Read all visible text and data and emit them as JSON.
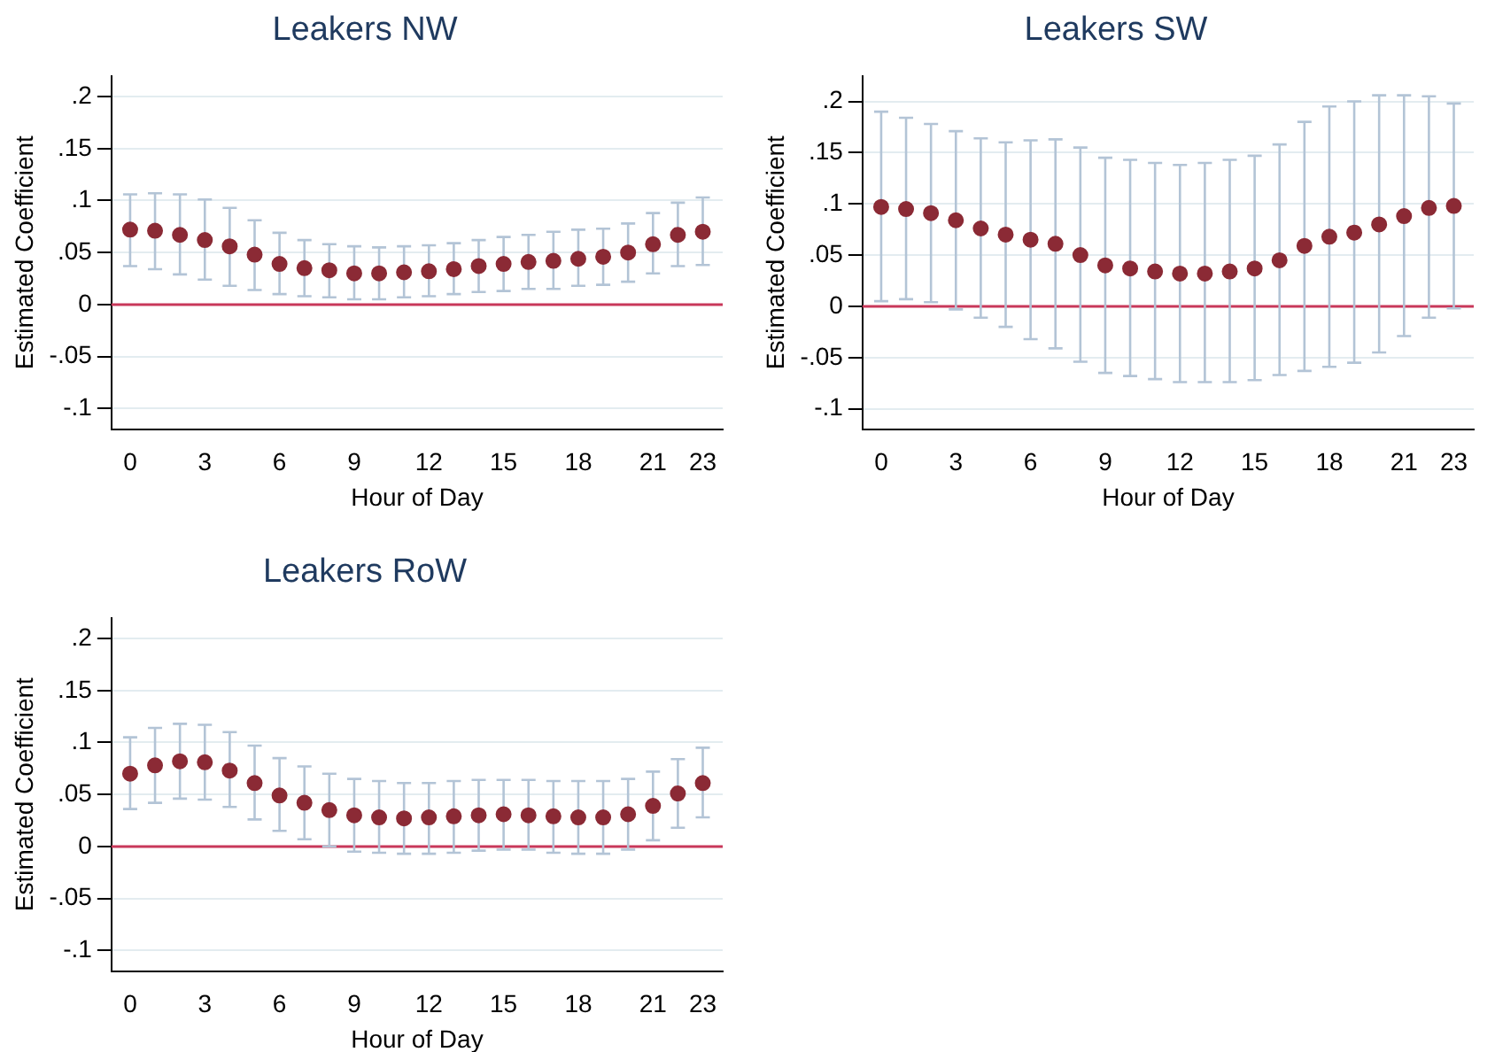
{
  "chart_data": [
    {
      "type": "scatter",
      "title": "Leakers NW",
      "xlabel": "Hour of Day",
      "ylabel": "Estimated Coefficient",
      "color": "#8b2a35",
      "marker": "circle",
      "grid": "y",
      "x": [
        0,
        1,
        2,
        3,
        4,
        5,
        6,
        7,
        8,
        9,
        10,
        11,
        12,
        13,
        14,
        15,
        16,
        17,
        18,
        19,
        20,
        21,
        22,
        23
      ],
      "values": [
        0.072,
        0.071,
        0.067,
        0.062,
        0.056,
        0.048,
        0.039,
        0.035,
        0.033,
        0.03,
        0.03,
        0.031,
        0.032,
        0.034,
        0.037,
        0.039,
        0.041,
        0.042,
        0.044,
        0.046,
        0.05,
        0.058,
        0.067,
        0.07
      ],
      "errors": [
        [
          0.037,
          0.106
        ],
        [
          0.034,
          0.107
        ],
        [
          0.029,
          0.106
        ],
        [
          0.024,
          0.101
        ],
        [
          0.018,
          0.093
        ],
        [
          0.014,
          0.081
        ],
        [
          0.01,
          0.069
        ],
        [
          0.008,
          0.062
        ],
        [
          0.007,
          0.058
        ],
        [
          0.005,
          0.056
        ],
        [
          0.005,
          0.055
        ],
        [
          0.007,
          0.056
        ],
        [
          0.008,
          0.057
        ],
        [
          0.01,
          0.059
        ],
        [
          0.012,
          0.062
        ],
        [
          0.013,
          0.065
        ],
        [
          0.015,
          0.067
        ],
        [
          0.015,
          0.07
        ],
        [
          0.018,
          0.072
        ],
        [
          0.019,
          0.073
        ],
        [
          0.022,
          0.078
        ],
        [
          0.03,
          0.088
        ],
        [
          0.037,
          0.098
        ],
        [
          0.038,
          0.103
        ]
      ],
      "xlim": [
        -0.75,
        23.8
      ],
      "ylim": [
        -0.12,
        0.22
      ],
      "xticks": [
        0,
        3,
        6,
        9,
        12,
        15,
        18,
        21,
        23
      ],
      "yticks": [
        {
          "value": -0.1,
          "label": "-.1"
        },
        {
          "value": -0.05,
          "label": "-.05"
        },
        {
          "value": 0,
          "label": "0"
        },
        {
          "value": 0.05,
          "label": ".05"
        },
        {
          "value": 0.1,
          "label": ".1"
        },
        {
          "value": 0.15,
          "label": ".15"
        },
        {
          "value": 0.2,
          "label": ".2"
        }
      ],
      "ref_lines": [
        {
          "axis": "y",
          "value": 0,
          "color": "#c8385a"
        }
      ]
    },
    {
      "type": "scatter",
      "title": "Leakers SW",
      "xlabel": "Hour of Day",
      "ylabel": "Estimated Coefficient",
      "color": "#8b2a35",
      "marker": "circle",
      "grid": "y",
      "x": [
        0,
        1,
        2,
        3,
        4,
        5,
        6,
        7,
        8,
        9,
        10,
        11,
        12,
        13,
        14,
        15,
        16,
        17,
        18,
        19,
        20,
        21,
        22,
        23
      ],
      "values": [
        0.097,
        0.095,
        0.091,
        0.084,
        0.076,
        0.07,
        0.065,
        0.061,
        0.05,
        0.04,
        0.037,
        0.034,
        0.032,
        0.032,
        0.034,
        0.037,
        0.045,
        0.059,
        0.068,
        0.072,
        0.08,
        0.088,
        0.096,
        0.098
      ],
      "errors": [
        [
          0.005,
          0.19
        ],
        [
          0.007,
          0.184
        ],
        [
          0.004,
          0.178
        ],
        [
          -0.003,
          0.171
        ],
        [
          -0.011,
          0.164
        ],
        [
          -0.02,
          0.16
        ],
        [
          -0.032,
          0.162
        ],
        [
          -0.041,
          0.163
        ],
        [
          -0.054,
          0.155
        ],
        [
          -0.065,
          0.145
        ],
        [
          -0.068,
          0.143
        ],
        [
          -0.071,
          0.14
        ],
        [
          -0.074,
          0.138
        ],
        [
          -0.074,
          0.14
        ],
        [
          -0.074,
          0.143
        ],
        [
          -0.072,
          0.147
        ],
        [
          -0.067,
          0.158
        ],
        [
          -0.063,
          0.18
        ],
        [
          -0.059,
          0.195
        ],
        [
          -0.055,
          0.2
        ],
        [
          -0.045,
          0.206
        ],
        [
          -0.029,
          0.206
        ],
        [
          -0.011,
          0.205
        ],
        [
          -0.002,
          0.198
        ]
      ],
      "xlim": [
        -0.75,
        23.8
      ],
      "ylim": [
        -0.12,
        0.225
      ],
      "xticks": [
        0,
        3,
        6,
        9,
        12,
        15,
        18,
        21,
        23
      ],
      "yticks": [
        {
          "value": -0.1,
          "label": "-.1"
        },
        {
          "value": -0.05,
          "label": "-.05"
        },
        {
          "value": 0,
          "label": "0"
        },
        {
          "value": 0.05,
          "label": ".05"
        },
        {
          "value": 0.1,
          "label": ".1"
        },
        {
          "value": 0.15,
          "label": ".15"
        },
        {
          "value": 0.2,
          "label": ".2"
        }
      ],
      "ref_lines": [
        {
          "axis": "y",
          "value": 0,
          "color": "#c8385a"
        }
      ]
    },
    {
      "type": "scatter",
      "title": "Leakers RoW",
      "xlabel": "Hour of Day",
      "ylabel": "Estimated Coefficient",
      "color": "#8b2a35",
      "marker": "circle",
      "grid": "y",
      "x": [
        0,
        1,
        2,
        3,
        4,
        5,
        6,
        7,
        8,
        9,
        10,
        11,
        12,
        13,
        14,
        15,
        16,
        17,
        18,
        19,
        20,
        21,
        22,
        23
      ],
      "values": [
        0.07,
        0.078,
        0.082,
        0.081,
        0.073,
        0.061,
        0.049,
        0.042,
        0.035,
        0.03,
        0.028,
        0.027,
        0.028,
        0.029,
        0.03,
        0.031,
        0.03,
        0.029,
        0.028,
        0.028,
        0.031,
        0.039,
        0.051,
        0.061
      ],
      "errors": [
        [
          0.036,
          0.105
        ],
        [
          0.042,
          0.114
        ],
        [
          0.046,
          0.118
        ],
        [
          0.045,
          0.117
        ],
        [
          0.038,
          0.11
        ],
        [
          0.026,
          0.097
        ],
        [
          0.015,
          0.085
        ],
        [
          0.007,
          0.077
        ],
        [
          0.0,
          0.07
        ],
        [
          -0.005,
          0.065
        ],
        [
          -0.006,
          0.063
        ],
        [
          -0.007,
          0.061
        ],
        [
          -0.007,
          0.061
        ],
        [
          -0.006,
          0.063
        ],
        [
          -0.004,
          0.064
        ],
        [
          -0.003,
          0.064
        ],
        [
          -0.003,
          0.064
        ],
        [
          -0.006,
          0.063
        ],
        [
          -0.007,
          0.063
        ],
        [
          -0.007,
          0.063
        ],
        [
          -0.003,
          0.065
        ],
        [
          0.006,
          0.072
        ],
        [
          0.018,
          0.084
        ],
        [
          0.028,
          0.095
        ]
      ],
      "xlim": [
        -0.75,
        23.8
      ],
      "ylim": [
        -0.12,
        0.22
      ],
      "xticks": [
        0,
        3,
        6,
        9,
        12,
        15,
        18,
        21,
        23
      ],
      "yticks": [
        {
          "value": -0.1,
          "label": "-.1"
        },
        {
          "value": -0.05,
          "label": "-.05"
        },
        0,
        {
          "value": 0.05,
          "label": ".05"
        },
        {
          "value": 0.1,
          "label": ".1"
        },
        {
          "value": 0.15,
          "label": ".15"
        },
        {
          "value": 0.2,
          "label": ".2"
        }
      ],
      "ref_lines": [
        {
          "axis": "y",
          "value": 0,
          "color": "#c8385a"
        }
      ]
    }
  ]
}
